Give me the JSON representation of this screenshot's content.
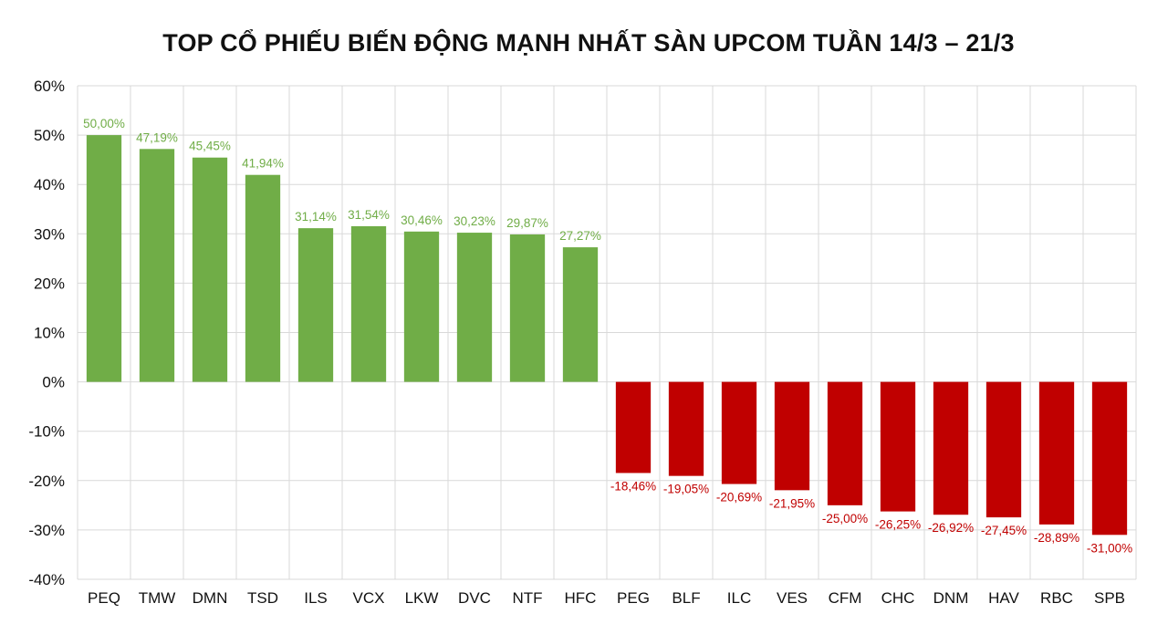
{
  "chart_data": {
    "type": "bar",
    "title": "TOP CỔ PHIẾU BIẾN ĐỘNG MẠNH NHẤT SÀN UPCOM TUẦN 14/3 – 21/3",
    "xlabel": "",
    "ylabel": "",
    "ylim": [
      -40,
      60
    ],
    "yticks": [
      60,
      50,
      40,
      30,
      20,
      10,
      0,
      -10,
      -20,
      -30,
      -40
    ],
    "ytick_labels": [
      "60%",
      "50%",
      "40%",
      "30%",
      "20%",
      "10%",
      "0%",
      "-10%",
      "-20%",
      "-30%",
      "-40%"
    ],
    "grid": true,
    "legend": "none",
    "categories": [
      "PEQ",
      "TMW",
      "DMN",
      "TSD",
      "ILS",
      "VCX",
      "LKW",
      "DVC",
      "NTF",
      "HFC",
      "PEG",
      "BLF",
      "ILC",
      "VES",
      "CFM",
      "CHC",
      "DNM",
      "HAV",
      "RBC",
      "SPB"
    ],
    "values": [
      50.0,
      47.19,
      45.45,
      41.94,
      31.14,
      31.54,
      30.46,
      30.23,
      29.87,
      27.27,
      -18.46,
      -19.05,
      -20.69,
      -21.95,
      -25.0,
      -26.25,
      -26.92,
      -27.45,
      -28.89,
      -31.0
    ],
    "data_labels": [
      "50,00%",
      "47,19%",
      "45,45%",
      "41,94%",
      "31,14%",
      "31,54%",
      "30,46%",
      "30,23%",
      "29,87%",
      "27,27%",
      "-18,46%",
      "-19,05%",
      "-20,69%",
      "-21,95%",
      "-25,00%",
      "-26,25%",
      "-26,92%",
      "-27,45%",
      "-28,89%",
      "-31,00%"
    ],
    "colors": {
      "positive": "#70ad47",
      "negative": "#c00000",
      "grid": "#d9d9d9"
    }
  }
}
